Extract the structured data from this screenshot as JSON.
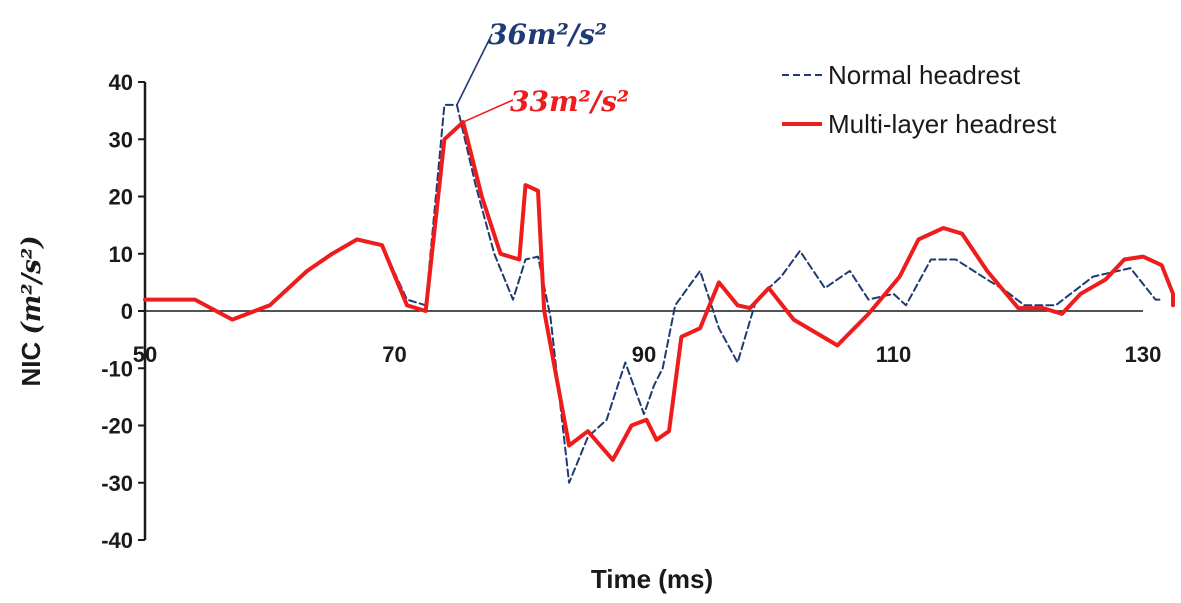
{
  "chart_data": {
    "type": "line",
    "title": "",
    "xlabel": "Time (ms)",
    "ylabel_prefix": "NIC ",
    "ylabel_math": "(m²/s²)",
    "xlim": [
      50,
      130
    ],
    "ylim": [
      -40,
      40
    ],
    "xticks": [
      50,
      70,
      90,
      110,
      130
    ],
    "yticks": [
      40,
      30,
      20,
      10,
      0,
      -10,
      -20,
      -30,
      -40
    ],
    "grid": false,
    "legend_position": "top-right",
    "series": [
      {
        "name": "Normal headrest",
        "color": "#1f3b73",
        "style": "dashed",
        "points": [
          [
            50,
            2
          ],
          [
            54,
            2
          ],
          [
            57,
            -1.5
          ],
          [
            60,
            1
          ],
          [
            63,
            7
          ],
          [
            65,
            10
          ],
          [
            67,
            12.5
          ],
          [
            69,
            11.5
          ],
          [
            71,
            2
          ],
          [
            72.5,
            1
          ],
          [
            74,
            36
          ],
          [
            75,
            36
          ],
          [
            76.5,
            22
          ],
          [
            78,
            10
          ],
          [
            79.5,
            2
          ],
          [
            80.5,
            9
          ],
          [
            81.5,
            9.5
          ],
          [
            82.5,
            -1
          ],
          [
            84,
            -30
          ],
          [
            85.5,
            -22
          ],
          [
            87,
            -19
          ],
          [
            88.5,
            -9
          ],
          [
            90,
            -18
          ],
          [
            90.8,
            -13
          ],
          [
            91.5,
            -10
          ],
          [
            92.5,
            1
          ],
          [
            94.5,
            7
          ],
          [
            96,
            -3
          ],
          [
            97.5,
            -9
          ],
          [
            99,
            2
          ],
          [
            101,
            6
          ],
          [
            102.5,
            10.5
          ],
          [
            104.5,
            4
          ],
          [
            106.5,
            7
          ],
          [
            108,
            2
          ],
          [
            110,
            3
          ],
          [
            111,
            1
          ],
          [
            113,
            9
          ],
          [
            115,
            9
          ],
          [
            117.5,
            5.5
          ],
          [
            119,
            3.5
          ],
          [
            120.5,
            1
          ],
          [
            123,
            1
          ],
          [
            126,
            6
          ],
          [
            129,
            7.5
          ],
          [
            131,
            2
          ],
          [
            131.5,
            2
          ]
        ]
      },
      {
        "name": "Multi-layer headrest",
        "color": "#ee1c1c",
        "style": "solid",
        "points": [
          [
            50,
            2
          ],
          [
            54,
            2
          ],
          [
            57,
            -1.5
          ],
          [
            60,
            1
          ],
          [
            63,
            7
          ],
          [
            65,
            10
          ],
          [
            67,
            12.5
          ],
          [
            69,
            11.5
          ],
          [
            71,
            1
          ],
          [
            72.5,
            0
          ],
          [
            74,
            30
          ],
          [
            75.5,
            33
          ],
          [
            77,
            20
          ],
          [
            78.5,
            10
          ],
          [
            80,
            9
          ],
          [
            80.5,
            22
          ],
          [
            81.5,
            21
          ],
          [
            82,
            0
          ],
          [
            84,
            -23.5
          ],
          [
            85.5,
            -21
          ],
          [
            87.5,
            -26
          ],
          [
            89,
            -20
          ],
          [
            90.2,
            -19
          ],
          [
            91,
            -22.5
          ],
          [
            92,
            -21
          ],
          [
            93,
            -4.5
          ],
          [
            94.5,
            -3
          ],
          [
            96,
            5
          ],
          [
            97.5,
            1
          ],
          [
            98.5,
            0.5
          ],
          [
            100,
            4
          ],
          [
            102,
            -1.5
          ],
          [
            105.5,
            -6
          ],
          [
            108,
            -0.5
          ],
          [
            110.5,
            6
          ],
          [
            112,
            12.5
          ],
          [
            114,
            14.5
          ],
          [
            115.5,
            13.5
          ],
          [
            117.5,
            7
          ],
          [
            120,
            0.5
          ],
          [
            122,
            0.5
          ],
          [
            123.5,
            -0.5
          ],
          [
            125,
            3
          ],
          [
            127,
            5.5
          ],
          [
            128.5,
            9
          ],
          [
            130,
            9.5
          ],
          [
            131.5,
            8
          ],
          [
            133,
            3
          ],
          [
            134,
            1
          ]
        ]
      }
    ],
    "annotations": [
      {
        "label": "36m²/s²",
        "points_to": [
          75,
          36
        ],
        "color": "#1f3b73"
      },
      {
        "label": "33m²/s²",
        "points_to": [
          75.5,
          33
        ],
        "color": "#ee1c1c"
      }
    ]
  }
}
